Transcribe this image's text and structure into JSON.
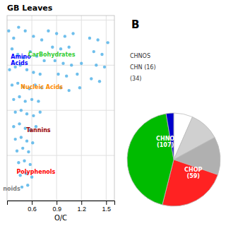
{
  "chart_data": [
    {
      "type": "scatter",
      "title": "GB Leaves",
      "x_label": "O/C",
      "xlim": [
        0.3,
        1.6
      ],
      "ylim": [
        0.5,
        2.55
      ],
      "xticks": [
        0.6,
        0.9,
        1.2,
        1.5
      ],
      "yticks": [
        0.5,
        1,
        1.5,
        2,
        2.5
      ],
      "tick_labels": "x",
      "grid": true,
      "color": "#56b4e9",
      "x": [
        0.32,
        0.38,
        0.44,
        0.52,
        0.62,
        0.72,
        0.36,
        0.43,
        0.5,
        0.58,
        0.66,
        0.75,
        0.33,
        0.4,
        0.46,
        0.54,
        0.62,
        0.7,
        0.36,
        0.43,
        0.5,
        0.57,
        0.64,
        0.72,
        0.38,
        0.45,
        0.52,
        0.6,
        0.68,
        0.4,
        0.47,
        0.54,
        0.62,
        0.7,
        0.38,
        0.45,
        0.52,
        0.58,
        0.65,
        0.4,
        0.47,
        0.54,
        0.61,
        0.42,
        0.49,
        0.56,
        0.44,
        0.51,
        0.58,
        0.46,
        0.53,
        0.6,
        0.48,
        0.55,
        0.8,
        0.9,
        1.0,
        1.1,
        0.85,
        0.95,
        1.05,
        0.88,
        0.98,
        1.08,
        1.2,
        0.92,
        1.02,
        1.15,
        0.95,
        1.05,
        1.18,
        1.3,
        1.4,
        1.52,
        1.35,
        1.45,
        1.38,
        1.48,
        1.32,
        1.42
      ],
      "values": [
        2.38,
        2.3,
        2.42,
        2.38,
        2.32,
        2.28,
        2.18,
        2.12,
        2.08,
        2.15,
        2.1,
        2.05,
        1.95,
        1.98,
        2.0,
        1.95,
        1.92,
        1.9,
        1.78,
        1.8,
        1.76,
        1.74,
        1.78,
        1.75,
        1.62,
        1.65,
        1.6,
        1.62,
        1.6,
        1.48,
        1.5,
        1.46,
        1.44,
        1.48,
        1.32,
        1.35,
        1.3,
        1.28,
        1.32,
        1.18,
        1.2,
        1.16,
        1.14,
        1.05,
        1.08,
        1.04,
        0.92,
        0.94,
        0.9,
        0.78,
        0.8,
        0.76,
        0.65,
        0.67,
        2.38,
        2.35,
        2.32,
        2.35,
        2.2,
        2.18,
        2.2,
        2.05,
        2.02,
        2.0,
        2.02,
        1.9,
        1.88,
        1.9,
        1.75,
        1.72,
        1.75,
        2.3,
        2.28,
        2.25,
        2.15,
        2.12,
        2.0,
        1.98,
        1.85,
        1.82
      ],
      "annotations": [
        {
          "text": "Amino\nAcids",
          "x": 0.345,
          "y": 2.06,
          "color": "blue"
        },
        {
          "text": "CarBohydrates",
          "x": 0.84,
          "y": 2.12,
          "color": "limegreen"
        },
        {
          "text": "Nucleic Acids",
          "x": 0.72,
          "y": 1.76,
          "color": "darkorange"
        },
        {
          "text": "Tannins",
          "x": 0.68,
          "y": 1.28,
          "color": "#990000"
        },
        {
          "text": "Polyphenols",
          "x": 0.65,
          "y": 0.82,
          "color": "red"
        },
        {
          "text": "noids",
          "x": 0.355,
          "y": 0.63,
          "color": "gray"
        }
      ]
    },
    {
      "type": "pie",
      "title": "B",
      "values": [
        5,
        8,
        10,
        18,
        33,
        2
      ],
      "colors": [
        "#ffffff",
        "#d0d0d0",
        "#b0b0b0",
        "#ff2222",
        "#00bb00",
        "#0000cc"
      ],
      "annotations": [
        {
          "text": "CHNOS"
        },
        {
          "text": "CHN (16)"
        },
        {
          "text": "(34)"
        },
        {
          "text": "CHOP\n(59)",
          "x": 0.42,
          "y": -0.28,
          "color": "white"
        },
        {
          "text": "CHNO\n(107)",
          "x": -0.18,
          "y": 0.38,
          "color": "white"
        }
      ]
    }
  ]
}
